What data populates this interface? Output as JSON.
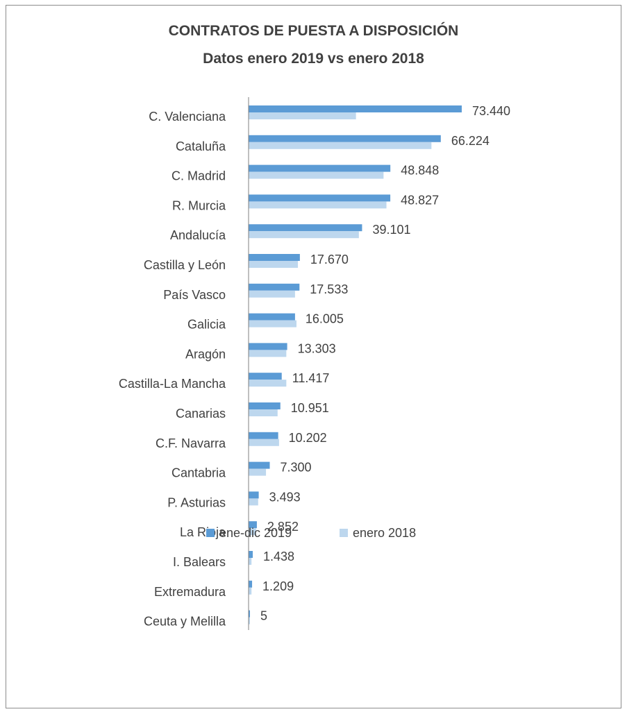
{
  "chart_data": {
    "type": "bar",
    "orientation": "horizontal",
    "title": "CONTRATOS DE PUESTA A DISPOSICIÓN",
    "subtitle": "Datos enero 2019 vs enero 2018",
    "categories": [
      "C. Valenciana",
      "Cataluña",
      "C. Madrid",
      "R. Murcia",
      "Andalucía",
      "Castilla y León",
      "País Vasco",
      "Galicia",
      "Aragón",
      "Castilla-La Mancha",
      "Canarias",
      "C.F. Navarra",
      "Cantabria",
      "P. Asturias",
      "La Rioja",
      "I. Balears",
      "Extremadura",
      "Ceuta y Melilla"
    ],
    "series": [
      {
        "name": "ene-dic 2019",
        "color": "#5b9bd5",
        "values": [
          73440,
          66224,
          48848,
          48827,
          39101,
          17670,
          17533,
          16005,
          13303,
          11417,
          10951,
          10202,
          7300,
          3493,
          2852,
          1438,
          1209,
          5
        ],
        "labels": [
          "73.440",
          "66.224",
          "48.848",
          "48.827",
          "39.101",
          "17.670",
          "17.533",
          "16.005",
          "13.303",
          "11.417",
          "10.951",
          "10.202",
          "7.300",
          "3.493",
          "2.852",
          "1.438",
          "1.209",
          "5"
        ]
      },
      {
        "name": "enero 2018",
        "color": "#bdd7ee",
        "values": [
          37000,
          63000,
          46500,
          47500,
          38000,
          17000,
          16000,
          16500,
          13000,
          13000,
          10000,
          10500,
          6000,
          3300,
          2600,
          1000,
          1000,
          100
        ]
      }
    ],
    "xlim": [
      0,
      78000
    ],
    "grid": false,
    "legend_position": "bottom"
  }
}
